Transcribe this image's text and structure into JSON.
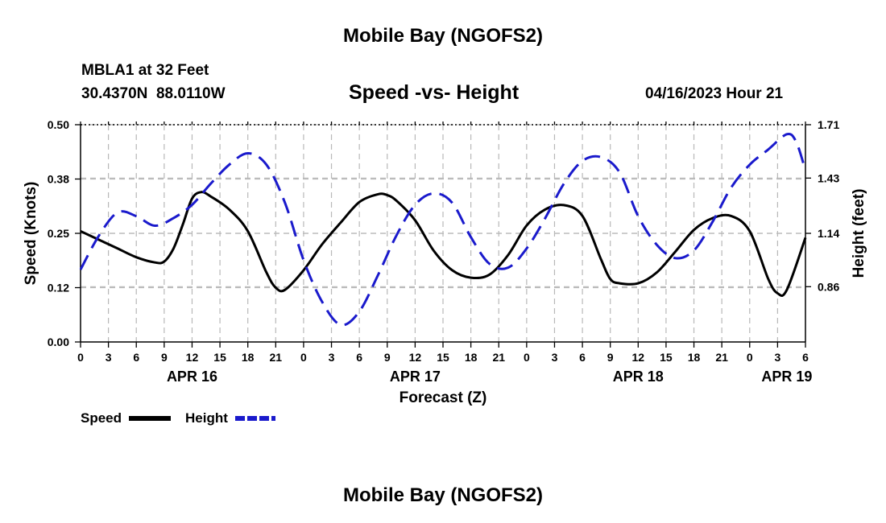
{
  "header": {
    "title": "Mobile Bay (NGOFS2)",
    "station": "MBLA1 at 32 Feet",
    "coords": "30.4370N  88.0110W",
    "subtitle": "Speed -vs- Height",
    "timestamp": "04/16/2023 Hour 21"
  },
  "footer": {
    "title": "Mobile Bay (NGOFS2)"
  },
  "chart_data": {
    "type": "line",
    "xlabel": "Forecast (Z)",
    "ylabel": "Speed (Knots)",
    "y2label": "Height (feet)",
    "xlim": [
      0,
      78
    ],
    "ylim": [
      0,
      0.5
    ],
    "y2lim": [
      0.57,
      1.71
    ],
    "grid": true,
    "x_ticks": [
      0,
      3,
      6,
      9,
      12,
      15,
      18,
      21,
      24,
      27,
      30,
      33,
      36,
      39,
      42,
      45,
      48,
      51,
      54,
      57,
      60,
      63,
      66,
      69,
      72,
      75,
      78
    ],
    "x_tick_labels": [
      "0",
      "3",
      "6",
      "9",
      "12",
      "15",
      "18",
      "21",
      "0",
      "3",
      "6",
      "9",
      "12",
      "15",
      "18",
      "21",
      "0",
      "3",
      "6",
      "9",
      "12",
      "15",
      "18",
      "21",
      "0",
      "3",
      "6"
    ],
    "y_ticks": [
      0.0,
      0.125,
      0.25,
      0.375,
      0.5
    ],
    "y_tick_labels": [
      "0.00",
      "0.12",
      "0.25",
      "0.38",
      "0.50"
    ],
    "y2_ticks": [
      0.86,
      1.14,
      1.43,
      1.71
    ],
    "y2_tick_labels": [
      "0.86",
      "1.14",
      "1.43",
      "1.71"
    ],
    "day_labels": [
      {
        "x": 12,
        "label": "APR 16"
      },
      {
        "x": 36,
        "label": "APR 17"
      },
      {
        "x": 60,
        "label": "APR 18"
      },
      {
        "x": 76,
        "label": "APR 19"
      }
    ],
    "legend": [
      {
        "name": "Speed",
        "color": "#000000",
        "style": "solid"
      },
      {
        "name": "Height",
        "color": "#1a1acc",
        "style": "dashed"
      }
    ],
    "series": [
      {
        "name": "Speed",
        "axis": "left",
        "color": "#000000",
        "style": "solid",
        "x": [
          0,
          2,
          4,
          6,
          8,
          9,
          10,
          11,
          12,
          13,
          14,
          16,
          18,
          20,
          21,
          22,
          24,
          26,
          28,
          30,
          32,
          33,
          34,
          36,
          38,
          40,
          42,
          44,
          46,
          48,
          50,
          52,
          54,
          56,
          57,
          58,
          60,
          62,
          64,
          66,
          68,
          70,
          72,
          74,
          75,
          76,
          78
        ],
        "y": [
          0.255,
          0.235,
          0.215,
          0.195,
          0.183,
          0.185,
          0.215,
          0.27,
          0.33,
          0.345,
          0.335,
          0.305,
          0.255,
          0.16,
          0.125,
          0.12,
          0.165,
          0.225,
          0.275,
          0.322,
          0.34,
          0.338,
          0.325,
          0.28,
          0.21,
          0.165,
          0.148,
          0.155,
          0.2,
          0.268,
          0.305,
          0.315,
          0.29,
          0.19,
          0.145,
          0.135,
          0.135,
          0.16,
          0.208,
          0.258,
          0.285,
          0.29,
          0.255,
          0.145,
          0.112,
          0.12,
          0.24
        ]
      },
      {
        "name": "Height",
        "axis": "right",
        "color": "#1a1acc",
        "style": "dashed",
        "x": [
          0,
          2,
          4,
          6,
          8,
          10,
          12,
          14,
          16,
          18,
          20,
          22,
          24,
          26,
          28,
          30,
          32,
          34,
          36,
          38,
          40,
          42,
          44,
          46,
          48,
          50,
          52,
          54,
          56,
          58,
          60,
          62,
          64,
          66,
          68,
          70,
          72,
          74,
          76,
          77,
          78
        ],
        "y": [
          0.95,
          1.13,
          1.25,
          1.23,
          1.18,
          1.22,
          1.29,
          1.4,
          1.5,
          1.56,
          1.5,
          1.3,
          1.0,
          0.78,
          0.66,
          0.73,
          0.92,
          1.13,
          1.29,
          1.35,
          1.3,
          1.12,
          0.98,
          0.96,
          1.06,
          1.22,
          1.4,
          1.52,
          1.54,
          1.46,
          1.23,
          1.08,
          1.01,
          1.05,
          1.2,
          1.38,
          1.5,
          1.58,
          1.66,
          1.62,
          1.47
        ]
      }
    ]
  }
}
